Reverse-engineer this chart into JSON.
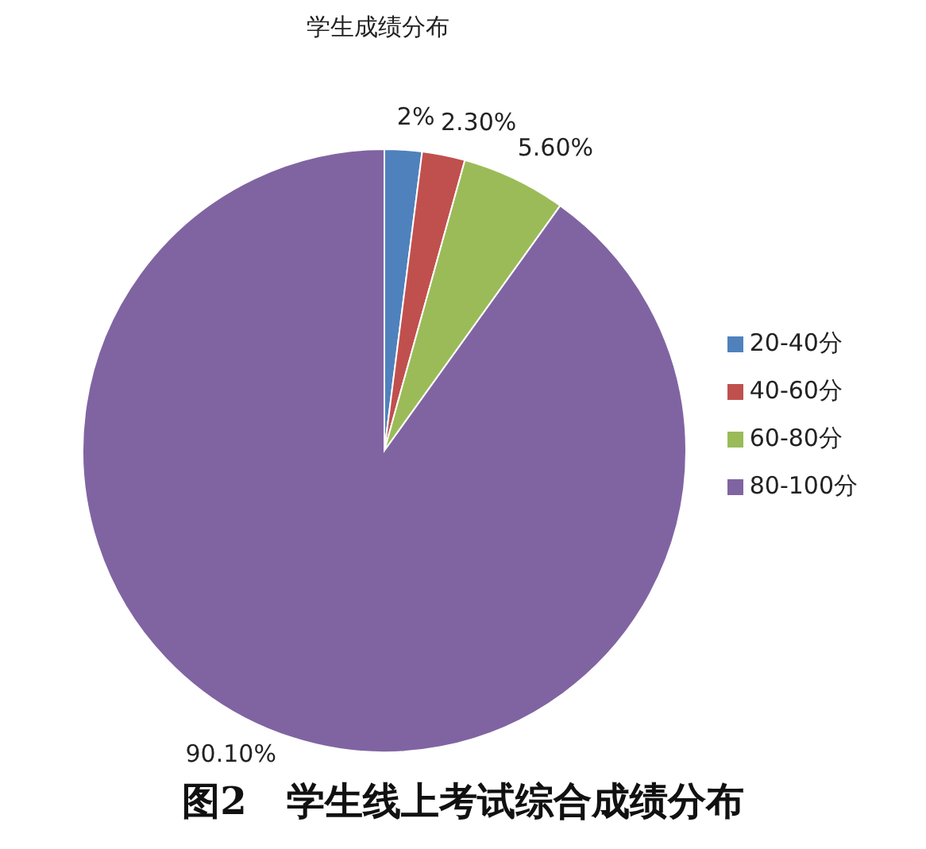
{
  "chart_data": {
    "type": "pie",
    "title": "学生成绩分布",
    "categories": [
      "20-40分",
      "40-60分",
      "60-80分",
      "80-100分"
    ],
    "values": [
      2,
      2.3,
      5.6,
      90.1
    ],
    "value_labels": [
      "2%",
      "2.30%",
      "5.60%",
      "90.10%"
    ],
    "colors": [
      "#4f81bd",
      "#c0504d",
      "#9bbb59",
      "#8064a2"
    ],
    "legend": "right",
    "annotations": [
      "图2   学生线上考试综合成绩分布"
    ]
  }
}
